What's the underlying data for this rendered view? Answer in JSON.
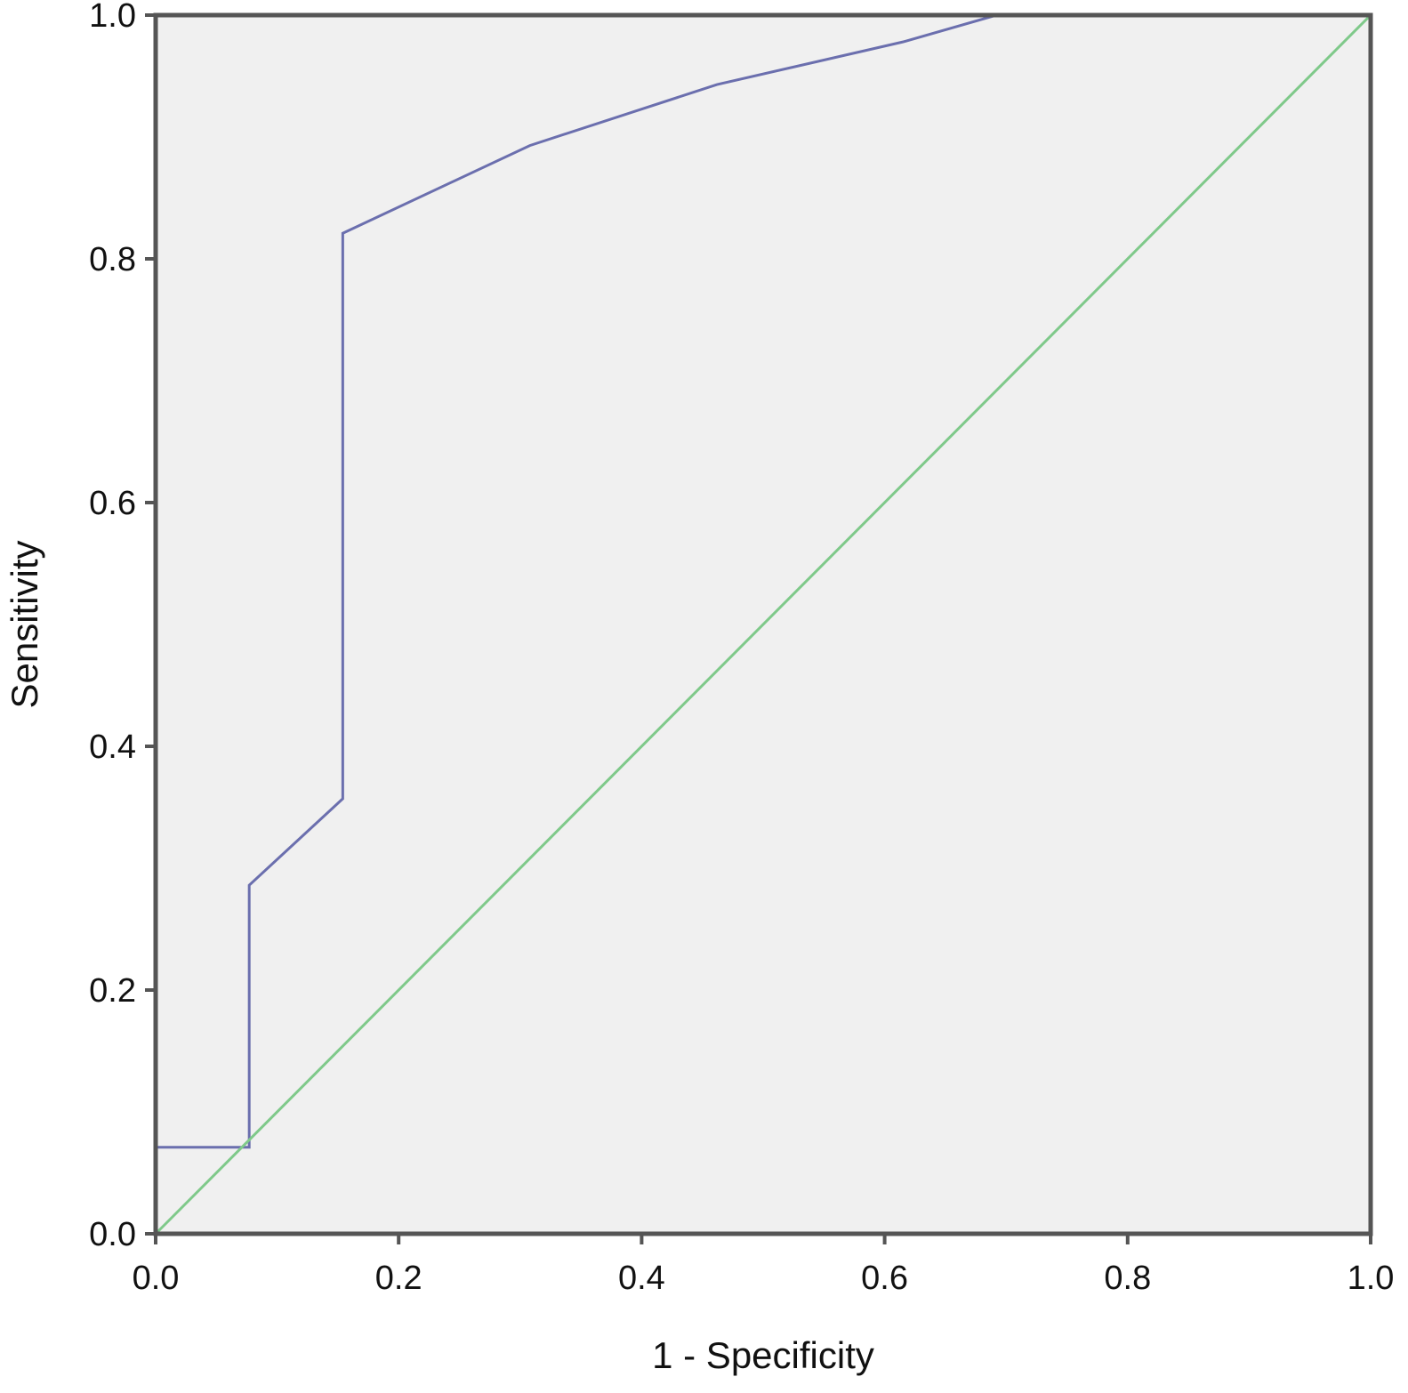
{
  "chart_data": {
    "type": "line",
    "title": "",
    "xlabel": "1 - Specificity",
    "ylabel": "Sensitivity",
    "xlim": [
      0.0,
      1.0
    ],
    "ylim": [
      0.0,
      1.0
    ],
    "x_ticks": [
      "0.0",
      "0.2",
      "0.4",
      "0.6",
      "0.8",
      "1.0"
    ],
    "y_ticks": [
      "0.0",
      "0.2",
      "0.4",
      "0.6",
      "0.8",
      "1.0"
    ],
    "grid": false,
    "background_color": "#f0f0f0",
    "series": [
      {
        "color": "#6b6fae",
        "points": [
          {
            "x": 0.0,
            "y": 0.0
          },
          {
            "x": 0.0,
            "y": 0.071
          },
          {
            "x": 0.077,
            "y": 0.071
          },
          {
            "x": 0.077,
            "y": 0.286
          },
          {
            "x": 0.154,
            "y": 0.357
          },
          {
            "x": 0.154,
            "y": 0.821
          },
          {
            "x": 0.308,
            "y": 0.893
          },
          {
            "x": 0.462,
            "y": 0.943
          },
          {
            "x": 0.615,
            "y": 0.978
          },
          {
            "x": 0.692,
            "y": 1.0
          },
          {
            "x": 1.0,
            "y": 1.0
          }
        ]
      },
      {
        "color": "#7fc98a",
        "points": [
          {
            "x": 0.0,
            "y": 0.0
          },
          {
            "x": 1.0,
            "y": 1.0
          }
        ]
      }
    ]
  }
}
